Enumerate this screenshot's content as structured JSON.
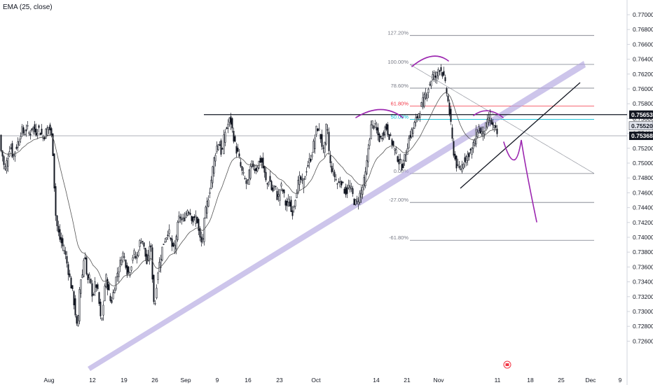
{
  "chart_data": {
    "type": "candlestick",
    "indicator": "EMA (25, close)",
    "y_axis": {
      "min": 0.726,
      "max": 0.771,
      "ticks": [
        "0.77000",
        "0.76800",
        "0.76600",
        "0.76400",
        "0.76200",
        "0.76000",
        "0.75800",
        "0.75600",
        "0.75400",
        "0.75200",
        "0.75000",
        "0.74800",
        "0.74600",
        "0.74400",
        "0.74200",
        "0.74000",
        "0.73800",
        "0.73600",
        "0.73400",
        "0.73200",
        "0.73000",
        "0.72800",
        "0.72600"
      ]
    },
    "x_axis": {
      "ticks": [
        "Aug",
        "12",
        "19",
        "26",
        "Sep",
        "9",
        "16",
        "23",
        "Oct",
        "14",
        "21",
        "Nov",
        "11",
        "18",
        "25",
        "Dec",
        "9"
      ]
    },
    "price_tags": [
      {
        "label": "0.75653",
        "value": 0.75653,
        "style": "dark"
      },
      {
        "label": "0.75520",
        "value": 0.7552,
        "style": "light"
      },
      {
        "label": "0.75368",
        "value": 0.75368,
        "style": "dark"
      }
    ],
    "fib_levels": [
      {
        "label": "127.20%",
        "value": 0.7672,
        "color": "#787b86"
      },
      {
        "label": "100.00%",
        "value": 0.7633,
        "color": "#787b86"
      },
      {
        "label": "78.60%",
        "value": 0.7601,
        "color": "#787b86"
      },
      {
        "label": "61.80%",
        "value": 0.7577,
        "color": "#f23645"
      },
      {
        "label": "50.00%",
        "value": 0.7559,
        "color": "#00bcd4"
      },
      {
        "label": "0.00%",
        "value": 0.7486,
        "color": "#787b86"
      },
      {
        "label": "-27.00%",
        "value": 0.7447,
        "color": "#787b86"
      },
      {
        "label": "-61.80%",
        "value": 0.7396,
        "color": "#787b86"
      }
    ],
    "resistance_level": 0.75653,
    "current_level": 0.75368,
    "price_path": [
      [
        0,
        0.752
      ],
      [
        3,
        0.751
      ],
      [
        6,
        0.749
      ],
      [
        10,
        0.7505
      ],
      [
        14,
        0.7525
      ],
      [
        18,
        0.7508
      ],
      [
        22,
        0.752
      ],
      [
        26,
        0.753
      ],
      [
        30,
        0.7545
      ],
      [
        34,
        0.754
      ],
      [
        38,
        0.7548
      ],
      [
        42,
        0.7538
      ],
      [
        46,
        0.755
      ],
      [
        50,
        0.754
      ],
      [
        54,
        0.7548
      ],
      [
        58,
        0.754
      ],
      [
        62,
        0.7535
      ],
      [
        66,
        0.7545
      ],
      [
        70,
        0.755
      ],
      [
        74,
        0.753
      ],
      [
        76,
        0.75
      ],
      [
        78,
        0.744
      ],
      [
        80,
        0.742
      ],
      [
        84,
        0.74
      ],
      [
        88,
        0.739
      ],
      [
        92,
        0.738
      ],
      [
        96,
        0.736
      ],
      [
        100,
        0.734
      ],
      [
        104,
        0.732
      ],
      [
        108,
        0.729
      ],
      [
        110,
        0.727
      ],
      [
        112,
        0.731
      ],
      [
        114,
        0.735
      ],
      [
        116,
        0.734
      ],
      [
        118,
        0.736
      ],
      [
        120,
        0.738
      ],
      [
        122,
        0.737
      ],
      [
        124,
        0.733
      ],
      [
        126,
        0.735
      ],
      [
        128,
        0.734
      ],
      [
        132,
        0.732
      ],
      [
        136,
        0.734
      ],
      [
        140,
        0.732
      ],
      [
        144,
        0.728
      ],
      [
        148,
        0.732
      ],
      [
        150,
        0.735
      ],
      [
        154,
        0.733
      ],
      [
        158,
        0.731
      ],
      [
        162,
        0.733
      ],
      [
        166,
        0.735
      ],
      [
        170,
        0.736
      ],
      [
        174,
        0.738
      ],
      [
        178,
        0.737
      ],
      [
        182,
        0.735
      ],
      [
        186,
        0.736
      ],
      [
        190,
        0.738
      ],
      [
        194,
        0.737
      ],
      [
        198,
        0.739
      ],
      [
        202,
        0.74
      ],
      [
        206,
        0.738
      ],
      [
        210,
        0.736
      ],
      [
        214,
        0.74
      ],
      [
        218,
        0.733
      ],
      [
        220,
        0.73
      ],
      [
        224,
        0.735
      ],
      [
        228,
        0.737
      ],
      [
        232,
        0.739
      ],
      [
        236,
        0.74
      ],
      [
        240,
        0.741
      ],
      [
        244,
        0.739
      ],
      [
        248,
        0.738
      ],
      [
        252,
        0.741
      ],
      [
        256,
        0.743
      ],
      [
        260,
        0.742
      ],
      [
        264,
        0.743
      ],
      [
        268,
        0.744
      ],
      [
        272,
        0.743
      ],
      [
        276,
        0.742
      ],
      [
        280,
        0.743
      ],
      [
        284,
        0.74
      ],
      [
        288,
        0.739
      ],
      [
        292,
        0.743
      ],
      [
        296,
        0.745
      ],
      [
        300,
        0.747
      ],
      [
        304,
        0.75
      ],
      [
        308,
        0.752
      ],
      [
        312,
        0.753
      ],
      [
        316,
        0.751
      ],
      [
        320,
        0.754
      ],
      [
        324,
        0.755
      ],
      [
        328,
        0.756
      ],
      [
        332,
        0.754
      ],
      [
        336,
        0.752
      ],
      [
        340,
        0.751
      ],
      [
        344,
        0.749
      ],
      [
        348,
        0.748
      ],
      [
        352,
        0.747
      ],
      [
        356,
        0.749
      ],
      [
        360,
        0.75
      ],
      [
        364,
        0.749
      ],
      [
        368,
        0.75
      ],
      [
        372,
        0.7505
      ],
      [
        376,
        0.749
      ],
      [
        380,
        0.747
      ],
      [
        384,
        0.748
      ],
      [
        388,
        0.746
      ],
      [
        392,
        0.747
      ],
      [
        396,
        0.745
      ],
      [
        400,
        0.747
      ],
      [
        404,
        0.746
      ],
      [
        408,
        0.744
      ],
      [
        412,
        0.745
      ],
      [
        416,
        0.743
      ],
      [
        420,
        0.745
      ],
      [
        424,
        0.747
      ],
      [
        428,
        0.748
      ],
      [
        432,
        0.747
      ],
      [
        436,
        0.749
      ],
      [
        440,
        0.75
      ],
      [
        444,
        0.751
      ],
      [
        448,
        0.753
      ],
      [
        452,
        0.755
      ],
      [
        456,
        0.754
      ],
      [
        460,
        0.752
      ],
      [
        462,
        0.751
      ],
      [
        466,
        0.756
      ],
      [
        470,
        0.75
      ],
      [
        474,
        0.749
      ],
      [
        478,
        0.748
      ],
      [
        482,
        0.747
      ],
      [
        486,
        0.748
      ],
      [
        490,
        0.7465
      ],
      [
        494,
        0.746
      ],
      [
        498,
        0.747
      ],
      [
        502,
        0.746
      ],
      [
        506,
        0.7445
      ],
      [
        510,
        0.745
      ],
      [
        514,
        0.746
      ],
      [
        518,
        0.747
      ],
      [
        522,
        0.749
      ],
      [
        526,
        0.753
      ],
      [
        530,
        0.7555
      ],
      [
        534,
        0.755
      ],
      [
        538,
        0.754
      ],
      [
        542,
        0.753
      ],
      [
        546,
        0.754
      ],
      [
        550,
        0.755
      ],
      [
        554,
        0.754
      ],
      [
        558,
        0.753
      ],
      [
        562,
        0.752
      ],
      [
        566,
        0.751
      ],
      [
        570,
        0.75
      ],
      [
        574,
        0.7495
      ],
      [
        578,
        0.751
      ],
      [
        582,
        0.753
      ],
      [
        586,
        0.754
      ],
      [
        590,
        0.755
      ],
      [
        594,
        0.756
      ],
      [
        598,
        0.757
      ],
      [
        602,
        0.758
      ],
      [
        606,
        0.759
      ],
      [
        610,
        0.76
      ],
      [
        614,
        0.761
      ],
      [
        618,
        0.762
      ],
      [
        622,
        0.7615
      ],
      [
        626,
        0.763
      ],
      [
        630,
        0.7625
      ],
      [
        634,
        0.761
      ],
      [
        638,
        0.759
      ],
      [
        642,
        0.756
      ],
      [
        646,
        0.752
      ],
      [
        650,
        0.75
      ],
      [
        654,
        0.749
      ],
      [
        658,
        0.7495
      ],
      [
        662,
        0.7505
      ],
      [
        666,
        0.751
      ],
      [
        670,
        0.7515
      ],
      [
        674,
        0.752
      ],
      [
        678,
        0.7535
      ],
      [
        682,
        0.755
      ],
      [
        686,
        0.754
      ],
      [
        690,
        0.7545
      ],
      [
        694,
        0.755
      ],
      [
        698,
        0.7565
      ],
      [
        702,
        0.755
      ],
      [
        706,
        0.7545
      ],
      [
        710,
        0.7537
      ]
    ]
  }
}
